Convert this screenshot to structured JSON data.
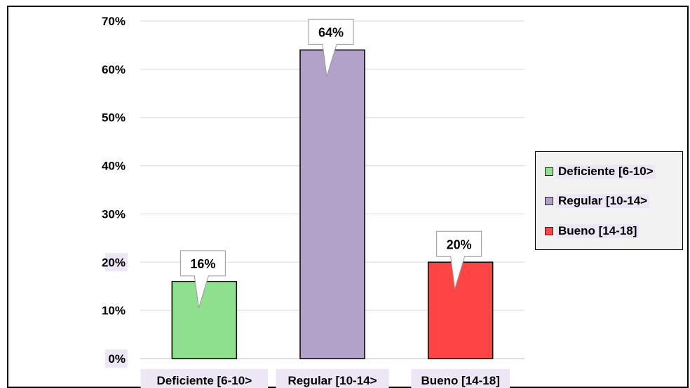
{
  "chart_data": {
    "type": "bar",
    "categories": [
      "Deficiente [6-10>",
      "Regular [10-14>",
      "Bueno [14-18]"
    ],
    "values": [
      16,
      64,
      20
    ],
    "data_labels": [
      "16%",
      "64%",
      "20%"
    ],
    "colors": [
      "#8ee08e",
      "#b2a1c9",
      "#ff4444"
    ],
    "ylim": [
      0,
      70
    ],
    "yticks": [
      "0%",
      "10%",
      "20%",
      "30%",
      "40%",
      "50%",
      "60%",
      "70%"
    ],
    "grid": true,
    "legend": {
      "position": "right",
      "entries": [
        "Deficiente [6-10>",
        "Regular [10-14>",
        "Bueno [14-18]"
      ]
    }
  }
}
